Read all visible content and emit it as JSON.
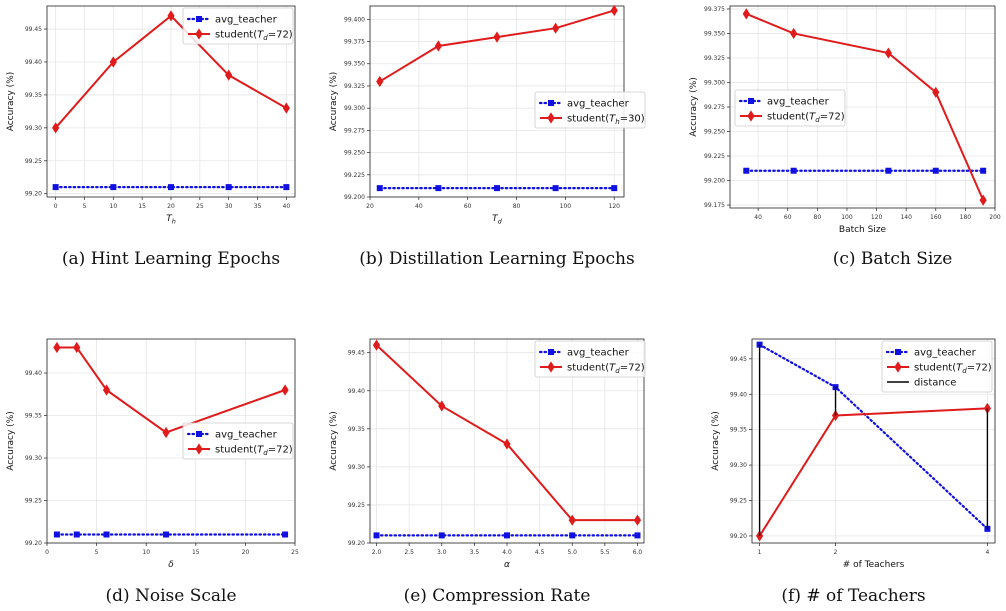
{
  "colors": {
    "teacher": "#1010e0",
    "student": "#e01b1b",
    "distance": "#000000",
    "grid": "#e6e6e6",
    "axis": "#222222"
  },
  "chart_data": [
    {
      "type": "line",
      "caption": "(a) Hint Learning Epochs",
      "xlabel": "T_h",
      "xlabel_main": "T",
      "xlabel_sub": "h",
      "ylabel": "Accuracy (%)",
      "xlim": [
        -1.5,
        41.5
      ],
      "ylim": [
        99.195,
        99.485
      ],
      "xticks": [
        0,
        5,
        10,
        15,
        20,
        25,
        30,
        35,
        40
      ],
      "xtick_labels": [
        "0",
        "5",
        "10",
        "15",
        "20",
        "25",
        "30",
        "35",
        "40"
      ],
      "yticks": [
        99.2,
        99.25,
        99.3,
        99.35,
        99.4,
        99.45
      ],
      "ytick_labels": [
        "99.20",
        "99.25",
        "99.30",
        "99.35",
        "99.40",
        "99.45"
      ],
      "grid": true,
      "legend_position": "top-right",
      "series": [
        {
          "name": "avg_teacher",
          "role": "teacher",
          "x": [
            0,
            10,
            20,
            30,
            40
          ],
          "y": [
            99.21,
            99.21,
            99.21,
            99.21,
            99.21
          ]
        },
        {
          "name": "student(T_d=72)",
          "legend_main": "student(",
          "legend_T": "T",
          "legend_sub": "d",
          "legend_tail": "=72)",
          "role": "student",
          "x": [
            0,
            10,
            20,
            30,
            40
          ],
          "y": [
            99.3,
            99.4,
            99.47,
            99.38,
            99.33
          ]
        }
      ]
    },
    {
      "type": "line",
      "caption": "(b) Distillation Learning Epochs",
      "xlabel": "T_d",
      "xlabel_main": "T",
      "xlabel_sub": "d",
      "ylabel": "Accuracy (%)",
      "xlim": [
        20,
        124
      ],
      "ylim": [
        99.2,
        99.415
      ],
      "xticks": [
        20,
        40,
        60,
        80,
        100,
        120
      ],
      "xtick_labels": [
        "20",
        "40",
        "60",
        "80",
        "100",
        "120"
      ],
      "yticks": [
        99.2,
        99.225,
        99.25,
        99.275,
        99.3,
        99.325,
        99.35,
        99.375,
        99.4
      ],
      "ytick_labels": [
        "99.200",
        "99.225",
        "99.250",
        "99.275",
        "99.300",
        "99.325",
        "99.350",
        "99.375",
        "99.400"
      ],
      "grid": true,
      "legend_position": "center-right",
      "series": [
        {
          "name": "avg_teacher",
          "role": "teacher",
          "x": [
            24,
            48,
            72,
            96,
            120
          ],
          "y": [
            99.21,
            99.21,
            99.21,
            99.21,
            99.21
          ]
        },
        {
          "name": "student(T_h=30)",
          "legend_main": "student(",
          "legend_T": "T",
          "legend_sub": "h",
          "legend_tail": "=30)",
          "role": "student",
          "x": [
            24,
            48,
            72,
            96,
            120
          ],
          "y": [
            99.33,
            99.37,
            99.38,
            99.39,
            99.41
          ]
        }
      ]
    },
    {
      "type": "line",
      "caption": "(c) Batch Size",
      "xlabel": "Batch Size",
      "xlabel_main": "Batch Size",
      "xlabel_sub": "",
      "ylabel": "Accuracy (%)",
      "xlim": [
        21,
        200
      ],
      "ylim": [
        99.172,
        99.378
      ],
      "xticks": [
        40,
        60,
        80,
        100,
        120,
        140,
        160,
        180,
        200
      ],
      "xtick_labels": [
        "40",
        "60",
        "80",
        "100",
        "120",
        "140",
        "160",
        "180",
        "200"
      ],
      "yticks": [
        99.175,
        99.2,
        99.225,
        99.25,
        99.275,
        99.3,
        99.325,
        99.35,
        99.375
      ],
      "ytick_labels": [
        "99.175",
        "99.200",
        "99.225",
        "99.250",
        "99.275",
        "99.300",
        "99.325",
        "99.350",
        "99.375"
      ],
      "grid": true,
      "legend_position": "center-left",
      "series": [
        {
          "name": "avg_teacher",
          "role": "teacher",
          "x": [
            32,
            64,
            128,
            160,
            192
          ],
          "y": [
            99.21,
            99.21,
            99.21,
            99.21,
            99.21
          ]
        },
        {
          "name": "student(T_d=72)",
          "legend_main": "student(",
          "legend_T": "T",
          "legend_sub": "d",
          "legend_tail": "=72)",
          "role": "student",
          "x": [
            32,
            64,
            128,
            160,
            192
          ],
          "y": [
            99.37,
            99.35,
            99.33,
            99.29,
            99.18
          ]
        }
      ]
    },
    {
      "type": "line",
      "caption": "(d) Noise Scale",
      "xlabel": "δ",
      "xlabel_main": "δ",
      "xlabel_sub": "",
      "ylabel": "Accuracy (%)",
      "xlim": [
        0,
        25
      ],
      "ylim": [
        99.2,
        99.44
      ],
      "xticks": [
        0,
        5,
        10,
        15,
        20,
        25
      ],
      "xtick_labels": [
        "0",
        "5",
        "10",
        "15",
        "20",
        "25"
      ],
      "yticks": [
        99.2,
        99.25,
        99.3,
        99.35,
        99.4
      ],
      "ytick_labels": [
        "99.20",
        "99.25",
        "99.30",
        "99.35",
        "99.40"
      ],
      "grid": true,
      "legend_position": "center-right",
      "series": [
        {
          "name": "avg_teacher",
          "role": "teacher",
          "x": [
            1,
            3,
            6,
            12,
            24
          ],
          "y": [
            99.21,
            99.21,
            99.21,
            99.21,
            99.21
          ]
        },
        {
          "name": "student(T_d=72)",
          "legend_main": "student(",
          "legend_T": "T",
          "legend_sub": "d",
          "legend_tail": "=72)",
          "role": "student",
          "x": [
            1,
            3,
            6,
            12,
            24
          ],
          "y": [
            99.43,
            99.43,
            99.38,
            99.33,
            99.38
          ]
        }
      ]
    },
    {
      "type": "line",
      "caption": "(e) Compression Rate",
      "xlabel": "α",
      "xlabel_main": "α",
      "xlabel_sub": "",
      "ylabel": "Accuracy (%)",
      "xlim": [
        1.9,
        6.1
      ],
      "ylim": [
        99.2,
        99.468
      ],
      "xticks": [
        2.0,
        2.5,
        3.0,
        3.5,
        4.0,
        4.5,
        5.0,
        5.5,
        6.0
      ],
      "xtick_labels": [
        "2.0",
        "2.5",
        "3.0",
        "3.5",
        "4.0",
        "4.5",
        "5.0",
        "5.5",
        "6.0"
      ],
      "yticks": [
        99.2,
        99.25,
        99.3,
        99.35,
        99.4,
        99.45
      ],
      "ytick_labels": [
        "99.20",
        "99.25",
        "99.30",
        "99.35",
        "99.40",
        "99.45"
      ],
      "grid": true,
      "legend_position": "top-right",
      "series": [
        {
          "name": "avg_teacher",
          "role": "teacher",
          "x": [
            2,
            3,
            4,
            5,
            6
          ],
          "y": [
            99.21,
            99.21,
            99.21,
            99.21,
            99.21
          ]
        },
        {
          "name": "student(T_d=72)",
          "legend_main": "student(",
          "legend_T": "T",
          "legend_sub": "d",
          "legend_tail": "=72)",
          "role": "student",
          "x": [
            2,
            3,
            4,
            5,
            6
          ],
          "y": [
            99.46,
            99.38,
            99.33,
            99.23,
            99.23
          ]
        }
      ]
    },
    {
      "type": "line",
      "caption": "(f) # of Teachers",
      "xlabel": "# of Teachers",
      "xlabel_main": "# of Teachers",
      "xlabel_sub": "",
      "ylabel": "Accuracy (%)",
      "xlim": [
        0.9,
        4.1
      ],
      "ylim": [
        99.19,
        99.478
      ],
      "xticks": [
        1,
        2,
        4
      ],
      "xtick_labels": [
        "1",
        "2",
        "4"
      ],
      "yticks": [
        99.2,
        99.25,
        99.3,
        99.35,
        99.4,
        99.45
      ],
      "ytick_labels": [
        "99.20",
        "99.25",
        "99.30",
        "99.35",
        "99.40",
        "99.45"
      ],
      "grid": true,
      "legend_position": "top-right",
      "series": [
        {
          "name": "avg_teacher",
          "role": "teacher",
          "x": [
            1,
            2,
            4
          ],
          "y": [
            99.47,
            99.41,
            99.21
          ]
        },
        {
          "name": "student(T_d=72)",
          "legend_main": "student(",
          "legend_T": "T",
          "legend_sub": "d",
          "legend_tail": "=72)",
          "role": "student",
          "x": [
            1,
            2,
            4
          ],
          "y": [
            99.2,
            99.37,
            99.38
          ]
        },
        {
          "name": "distance",
          "role": "distance",
          "x": [
            1,
            2,
            4
          ],
          "y": [
            99.2,
            99.37,
            99.38
          ]
        }
      ]
    }
  ]
}
